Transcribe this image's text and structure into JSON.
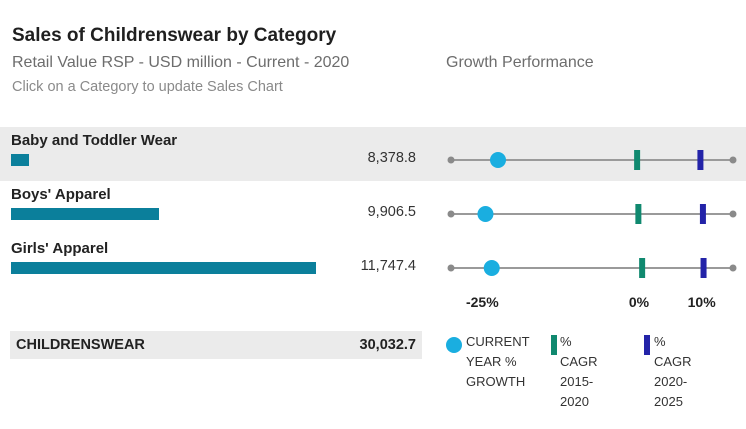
{
  "header": {
    "title": "Sales of Childrenswear by Category",
    "subtitle": "Retail Value RSP - USD million - Current - 2020",
    "hint": "Click on a Category to update Sales Chart",
    "growth_title": "Growth Performance"
  },
  "chart_data": [
    {
      "type": "bar",
      "title": "Sales of Childrenswear by Category",
      "subtitle": "Retail Value RSP - USD million - Current - 2020",
      "categories": [
        "Baby and Toddler Wear",
        "Boys' Apparel",
        "Girls' Apparel"
      ],
      "values": [
        8378.8,
        9906.5,
        11747.4
      ],
      "value_labels": [
        "8,378.8",
        "9,906.5",
        "11,747.4"
      ],
      "xlim": [
        8170,
        11840
      ],
      "total": {
        "label": "CHILDRENSWEAR",
        "value": 30032.7,
        "value_label": "30,032.7"
      }
    },
    {
      "type": "scatter",
      "title": "Growth Performance",
      "categories": [
        "Baby and Toddler Wear",
        "Boys' Apparel",
        "Girls' Apparel"
      ],
      "xlim": [
        -30,
        15
      ],
      "ticks": [
        {
          "value": -25,
          "label": "-25%"
        },
        {
          "value": 0,
          "label": "0%"
        },
        {
          "value": 10,
          "label": "10%"
        }
      ],
      "series": [
        {
          "name": "CURRENT YEAR % GROWTH",
          "marker": "circle",
          "color": "#1aaee0",
          "values": [
            -22.5,
            -24.5,
            -23.5
          ]
        },
        {
          "name": "% CAGR 2015-2020",
          "marker": "bar",
          "color": "#10896f",
          "values": [
            -0.3,
            -0.1,
            0.5
          ]
        },
        {
          "name": "% CAGR 2020-2025",
          "marker": "bar",
          "color": "#2323a8",
          "values": [
            9.8,
            10.2,
            10.3
          ]
        }
      ]
    }
  ],
  "legend": [
    {
      "label": "CURRENT\nYEAR %\nGROWTH",
      "color": "#1aaee0",
      "marker": "circle"
    },
    {
      "label": "% CAGR\n2015-2020",
      "color": "#10896f",
      "marker": "bar"
    },
    {
      "label": "% CAGR\n2020-2025",
      "color": "#2323a8",
      "marker": "bar"
    }
  ]
}
